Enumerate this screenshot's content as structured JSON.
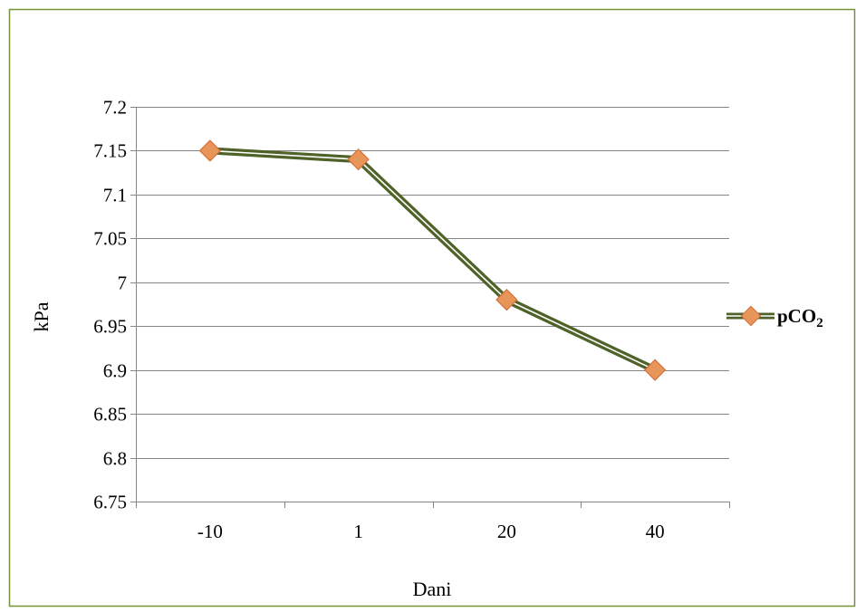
{
  "chart_data": {
    "type": "line",
    "categories": [
      "-10",
      "1",
      "20",
      "40"
    ],
    "series": [
      {
        "name": "pCO",
        "name_subscript": "2",
        "values": [
          7.15,
          7.14,
          6.98,
          6.9
        ]
      }
    ],
    "title": "",
    "xlabel": "Dani",
    "ylabel": "kPa",
    "ylim": [
      6.75,
      7.2
    ],
    "ytick_step": 0.05,
    "yticks": [
      "6.75",
      "6.8",
      "6.85",
      "6.9",
      "6.95",
      "7",
      "7.05",
      "7.1",
      "7.15",
      "7.2"
    ],
    "grid": true,
    "legend_position": "right",
    "colors": {
      "line_outer": "#4f6228",
      "line_inner": "#ffffff",
      "marker_fill": "#e8955a",
      "marker_stroke": "#d4703a",
      "grid": "#868686",
      "border": "#76923c"
    }
  }
}
